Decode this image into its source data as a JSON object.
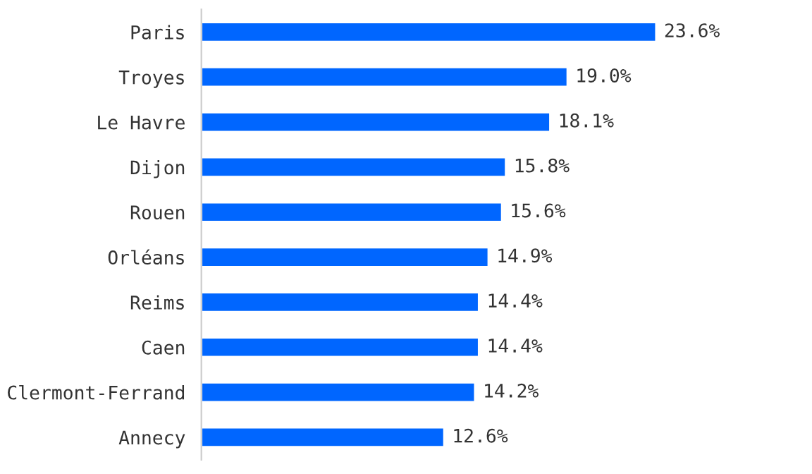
{
  "chart_data": {
    "type": "bar",
    "orientation": "horizontal",
    "categories": [
      "Paris",
      "Troyes",
      "Le Havre",
      "Dijon",
      "Rouen",
      "Orléans",
      "Reims",
      "Caen",
      "Clermont-Ferrand",
      "Annecy"
    ],
    "values": [
      23.6,
      19.0,
      18.1,
      15.8,
      15.6,
      14.9,
      14.4,
      14.4,
      14.2,
      12.6
    ],
    "value_labels": [
      "23.6%",
      "19.0%",
      "18.1%",
      "15.8%",
      "15.6%",
      "14.9%",
      "14.4%",
      "14.4%",
      "14.2%",
      "12.6%"
    ],
    "color": "#0066ff",
    "grid": false,
    "legend": false,
    "tick_labels": "y"
  }
}
